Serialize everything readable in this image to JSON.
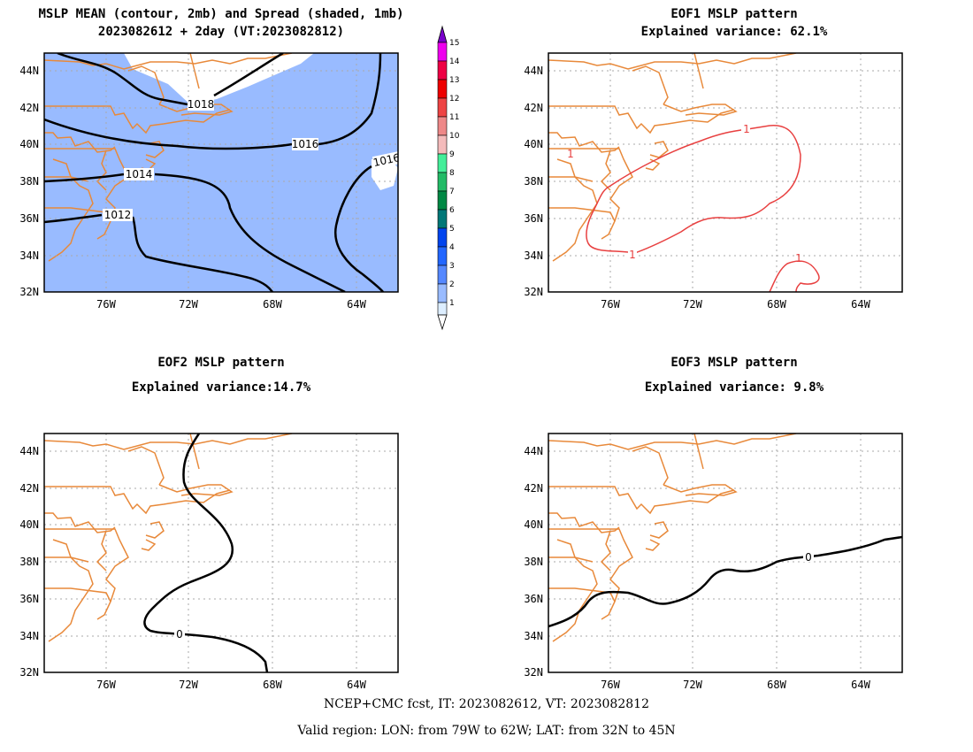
{
  "panels": {
    "p1": {
      "title1": "MSLP MEAN (contour, 2mb) and Spread (shaded, 1mb)",
      "title2": "2023082612 + 2day (VT:2023082812)",
      "contour_labels": [
        "1018",
        "1016",
        "1014",
        "1012",
        "1016"
      ]
    },
    "p2": {
      "title1": "EOF1 MSLP pattern",
      "title2": "Explained variance: 62.1%",
      "contour_labels": [
        "1",
        "1",
        "1",
        "1"
      ]
    },
    "p3": {
      "title1": "EOF2 MSLP pattern",
      "title2": "Explained variance:14.7%",
      "contour_labels": [
        "0"
      ]
    },
    "p4": {
      "title1": "EOF3 MSLP pattern",
      "title2": "Explained variance: 9.8%",
      "contour_labels": [
        "0"
      ]
    }
  },
  "axes": {
    "lat_labels": [
      "44N",
      "42N",
      "40N",
      "38N",
      "36N",
      "34N",
      "32N"
    ],
    "lon_labels": [
      "76W",
      "72W",
      "68W",
      "64W"
    ]
  },
  "colorbar": {
    "labels": [
      "15",
      "14",
      "13",
      "12",
      "11",
      "10",
      "9",
      "8",
      "7",
      "6",
      "5",
      "4",
      "3",
      "2",
      "1"
    ]
  },
  "footer": {
    "line1": "NCEP+CMC fcst, IT: 2023082612, VT: 2023082812",
    "line2": "Valid region: LON: from 79W to 62W; LAT: from 32N to 45N"
  },
  "colors": {
    "coast": "#e8893a",
    "spread": "#99bbff",
    "eof1": "#e84040",
    "contour": "#000000"
  }
}
